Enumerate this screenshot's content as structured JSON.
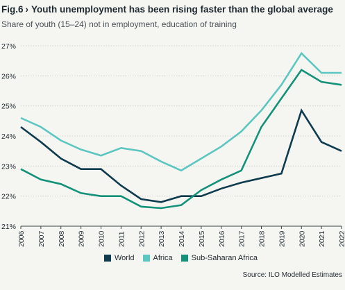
{
  "chart_data": {
    "type": "line",
    "fig_label": "Fig.6",
    "chevron": "›",
    "title": "Youth unemployment has been rising faster than the global average",
    "subtitle": "Share of youth (15–24) not in employment, education of training",
    "source": "Source: ILO Modelled Estimates",
    "x": [
      "2006",
      "2007",
      "2008",
      "2009",
      "2010",
      "2011",
      "2012",
      "2013",
      "2014",
      "2015",
      "2016",
      "2017",
      "2018",
      "2019",
      "2020",
      "2021",
      "2022"
    ],
    "y_ticks": [
      "21%",
      "22%",
      "23%",
      "24%",
      "25%",
      "26%",
      "27%"
    ],
    "ylim": [
      21,
      27
    ],
    "grid": true,
    "legend_position": "bottom",
    "series": [
      {
        "name": "World",
        "color": "#0e3b4e",
        "values": [
          24.3,
          23.8,
          23.25,
          22.9,
          22.9,
          22.35,
          21.9,
          21.8,
          22.0,
          22.0,
          22.25,
          22.45,
          22.6,
          22.75,
          24.85,
          23.8,
          23.5
        ]
      },
      {
        "name": "Africa",
        "color": "#5cc6c0",
        "values": [
          24.6,
          24.3,
          23.85,
          23.55,
          23.35,
          23.6,
          23.5,
          23.15,
          22.85,
          23.25,
          23.65,
          24.15,
          24.85,
          25.7,
          26.75,
          26.1,
          26.1
        ]
      },
      {
        "name": "Sub-Saharan Africa",
        "color": "#139279",
        "values": [
          22.9,
          22.55,
          22.4,
          22.1,
          22.0,
          22.0,
          21.65,
          21.6,
          21.7,
          22.2,
          22.55,
          22.85,
          24.3,
          25.25,
          26.2,
          25.8,
          25.7
        ]
      }
    ]
  }
}
